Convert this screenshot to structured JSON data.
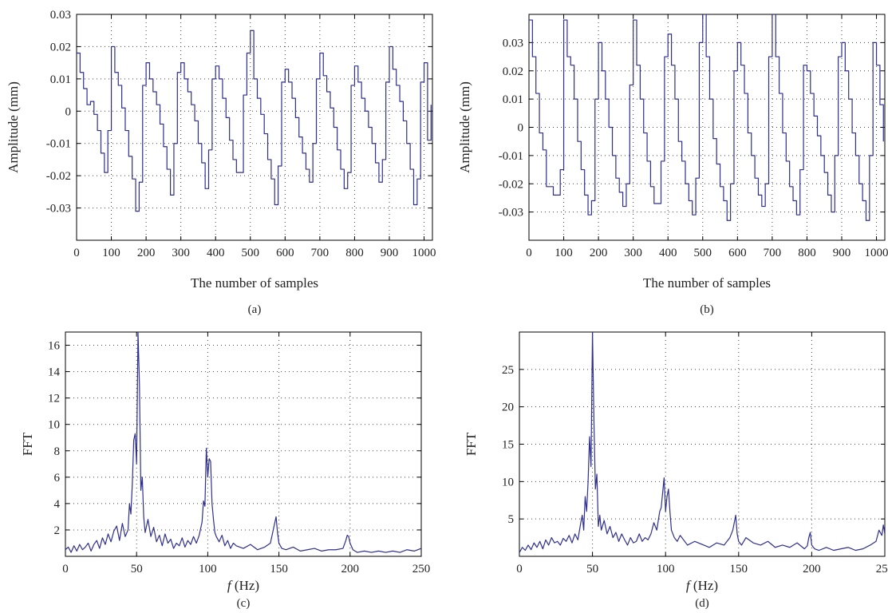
{
  "chart_data": [
    {
      "type": "line",
      "panel": "(a)",
      "xlabel": "The number of samples",
      "ylabel": "Amplitude (mm)",
      "xlim": [
        0,
        1024
      ],
      "ylim": [
        -0.04,
        0.03
      ],
      "xticks": [
        0,
        100,
        200,
        300,
        400,
        500,
        600,
        700,
        800,
        900,
        1000
      ],
      "yticks": [
        -0.03,
        -0.02,
        -0.01,
        0,
        0.01,
        0.02,
        0.03
      ],
      "yticklabels": [
        "-0.03",
        "-0.02",
        "-0.01",
        "0",
        "0.01",
        "0.02",
        "0.03"
      ],
      "grid": true,
      "x": [
        0,
        10,
        20,
        30,
        40,
        50,
        60,
        70,
        80,
        90,
        100,
        110,
        120,
        130,
        140,
        150,
        160,
        170,
        180,
        190,
        200,
        210,
        220,
        230,
        240,
        250,
        260,
        270,
        280,
        290,
        300,
        310,
        320,
        330,
        340,
        350,
        360,
        370,
        380,
        390,
        400,
        410,
        420,
        430,
        440,
        450,
        460,
        470,
        480,
        490,
        500,
        510,
        520,
        530,
        540,
        550,
        560,
        570,
        580,
        590,
        600,
        610,
        620,
        630,
        640,
        650,
        660,
        670,
        680,
        690,
        700,
        710,
        720,
        730,
        740,
        750,
        760,
        770,
        780,
        790,
        800,
        810,
        820,
        830,
        840,
        850,
        860,
        870,
        880,
        890,
        900,
        910,
        920,
        930,
        940,
        950,
        960,
        970,
        980,
        990,
        1000,
        1010,
        1020
      ],
      "y": [
        0.018,
        0.012,
        0.007,
        0.002,
        0.003,
        -0.001,
        -0.006,
        -0.013,
        -0.019,
        -0.006,
        0.02,
        0.012,
        0.008,
        0.001,
        -0.006,
        -0.014,
        -0.021,
        -0.031,
        -0.022,
        0.008,
        0.015,
        0.01,
        0.006,
        0.002,
        -0.004,
        -0.011,
        -0.018,
        -0.026,
        -0.01,
        0.012,
        0.015,
        0.01,
        0.006,
        0.002,
        -0.003,
        -0.01,
        -0.016,
        -0.024,
        -0.012,
        0.01,
        0.014,
        0.01,
        0.004,
        -0.002,
        -0.009,
        -0.015,
        -0.019,
        -0.019,
        0.005,
        0.018,
        0.025,
        0.01,
        0.004,
        -0.001,
        -0.007,
        -0.015,
        -0.021,
        -0.029,
        -0.017,
        0.009,
        0.013,
        0.009,
        0.004,
        -0.002,
        -0.008,
        -0.013,
        -0.018,
        -0.022,
        -0.01,
        0.01,
        0.018,
        0.011,
        0.006,
        0.001,
        -0.005,
        -0.012,
        -0.018,
        -0.024,
        -0.019,
        0.008,
        0.014,
        0.009,
        0.004,
        0.0,
        -0.005,
        -0.01,
        -0.016,
        -0.022,
        -0.015,
        0.009,
        0.02,
        0.013,
        0.008,
        0.003,
        -0.003,
        -0.01,
        -0.018,
        -0.029,
        -0.021,
        0.009,
        0.015,
        -0.009,
        0.002
      ]
    },
    {
      "type": "line",
      "panel": "(b)",
      "xlabel": "The number of samples",
      "ylabel": "Amplitude (mm)",
      "xlim": [
        0,
        1024
      ],
      "ylim": [
        -0.04,
        0.04
      ],
      "xticks": [
        0,
        100,
        200,
        300,
        400,
        500,
        600,
        700,
        800,
        900,
        1000
      ],
      "yticks": [
        -0.03,
        -0.02,
        -0.01,
        0,
        0.01,
        0.02,
        0.03
      ],
      "yticklabels": [
        "-0.03",
        "-0.02",
        "-0.01",
        "0",
        "0.01",
        "0.02",
        "0.03"
      ],
      "grid": true,
      "x": [
        0,
        10,
        20,
        30,
        40,
        50,
        60,
        70,
        80,
        90,
        100,
        110,
        120,
        130,
        140,
        150,
        160,
        170,
        180,
        190,
        200,
        210,
        220,
        230,
        240,
        250,
        260,
        270,
        280,
        290,
        300,
        310,
        320,
        330,
        340,
        350,
        360,
        370,
        380,
        390,
        400,
        410,
        420,
        430,
        440,
        450,
        460,
        470,
        480,
        490,
        500,
        510,
        520,
        530,
        540,
        550,
        560,
        570,
        580,
        590,
        600,
        610,
        620,
        630,
        640,
        650,
        660,
        670,
        680,
        690,
        700,
        710,
        720,
        730,
        740,
        750,
        760,
        770,
        780,
        790,
        800,
        810,
        820,
        830,
        840,
        850,
        860,
        870,
        880,
        890,
        900,
        910,
        920,
        930,
        940,
        950,
        960,
        970,
        980,
        990,
        1000,
        1010,
        1020
      ],
      "y": [
        0.038,
        0.025,
        0.012,
        -0.002,
        -0.008,
        -0.021,
        -0.021,
        -0.024,
        -0.024,
        -0.015,
        0.038,
        0.025,
        0.022,
        0.01,
        -0.005,
        -0.015,
        -0.024,
        -0.031,
        -0.026,
        0.01,
        0.03,
        0.02,
        0.01,
        0.0,
        -0.01,
        -0.018,
        -0.023,
        -0.028,
        -0.02,
        0.015,
        0.038,
        0.022,
        0.01,
        -0.002,
        -0.012,
        -0.021,
        -0.027,
        -0.027,
        -0.012,
        0.025,
        0.033,
        0.022,
        0.01,
        -0.005,
        -0.012,
        -0.02,
        -0.026,
        -0.031,
        -0.018,
        0.03,
        0.04,
        0.025,
        0.01,
        -0.004,
        -0.013,
        -0.021,
        -0.026,
        -0.033,
        -0.02,
        0.02,
        0.03,
        0.022,
        0.012,
        -0.002,
        -0.01,
        -0.018,
        -0.024,
        -0.028,
        -0.02,
        0.025,
        0.04,
        0.025,
        0.012,
        -0.002,
        -0.012,
        -0.021,
        -0.026,
        -0.031,
        -0.015,
        0.022,
        0.02,
        0.012,
        0.004,
        -0.003,
        -0.01,
        -0.016,
        -0.024,
        -0.03,
        -0.01,
        0.025,
        0.03,
        0.02,
        0.01,
        -0.002,
        -0.01,
        -0.02,
        -0.026,
        -0.033,
        -0.01,
        0.03,
        0.022,
        0.008,
        -0.005
      ]
    },
    {
      "type": "line",
      "panel": "(c)",
      "xlabel_italic": "f",
      "xlabel_unit": "(Hz)",
      "ylabel": "FFT",
      "xlim": [
        0,
        250
      ],
      "ylim": [
        0,
        17
      ],
      "xticks": [
        0,
        50,
        100,
        150,
        200,
        250
      ],
      "yticks": [
        2,
        4,
        6,
        8,
        10,
        12,
        14,
        16
      ],
      "yticklabels": [
        "2",
        "4",
        "6",
        "8",
        "10",
        "12",
        "14",
        "16"
      ],
      "grid": true,
      "x": [
        0,
        2,
        4,
        6,
        8,
        10,
        12,
        14,
        16,
        18,
        20,
        22,
        24,
        26,
        28,
        30,
        32,
        34,
        36,
        38,
        40,
        42,
        44,
        45,
        46,
        47,
        48,
        49,
        50,
        51,
        52,
        53,
        54,
        55,
        56,
        58,
        60,
        62,
        64,
        66,
        68,
        70,
        72,
        74,
        76,
        78,
        80,
        82,
        84,
        86,
        88,
        90,
        92,
        94,
        96,
        97,
        98,
        99,
        100,
        101,
        102,
        103,
        104,
        105,
        106,
        108,
        110,
        112,
        114,
        116,
        118,
        120,
        125,
        130,
        135,
        140,
        144,
        146,
        148,
        149,
        150,
        152,
        155,
        160,
        165,
        170,
        175,
        180,
        185,
        190,
        195,
        197,
        198,
        199,
        200,
        202,
        205,
        210,
        215,
        220,
        225,
        230,
        235,
        240,
        245,
        250
      ],
      "y": [
        0.5,
        0.7,
        0.3,
        0.8,
        0.4,
        0.9,
        0.5,
        0.7,
        1.0,
        0.4,
        0.9,
        1.2,
        0.6,
        1.4,
        0.9,
        1.7,
        1.1,
        1.9,
        2.3,
        1.2,
        2.5,
        1.5,
        2.0,
        4.0,
        3.2,
        5.5,
        8.8,
        9.3,
        7.0,
        17.0,
        13.0,
        5.0,
        6.0,
        3.0,
        1.8,
        2.8,
        1.5,
        2.2,
        1.1,
        1.6,
        0.8,
        1.7,
        1.0,
        1.3,
        0.6,
        1.0,
        0.8,
        1.4,
        0.7,
        1.2,
        0.9,
        1.5,
        1.0,
        1.6,
        2.6,
        4.2,
        3.8,
        8.2,
        6.0,
        7.4,
        7.2,
        4.0,
        2.8,
        1.8,
        1.5,
        1.1,
        1.6,
        0.8,
        1.2,
        0.6,
        1.0,
        0.8,
        0.6,
        0.9,
        0.5,
        0.7,
        1.0,
        2.0,
        3.0,
        1.8,
        1.0,
        0.6,
        0.5,
        0.7,
        0.4,
        0.5,
        0.6,
        0.4,
        0.5,
        0.5,
        0.6,
        1.2,
        1.6,
        1.5,
        1.0,
        0.5,
        0.3,
        0.4,
        0.3,
        0.4,
        0.3,
        0.4,
        0.3,
        0.5,
        0.4,
        0.6
      ]
    },
    {
      "type": "line",
      "panel": "(d)",
      "xlabel_italic": "f",
      "xlabel_unit": "(Hz)",
      "ylabel": "FFT",
      "xlim": [
        0,
        250
      ],
      "ylim": [
        0,
        30
      ],
      "xticks": [
        0,
        50,
        100,
        150,
        200,
        250
      ],
      "yticks": [
        5,
        10,
        15,
        20,
        25
      ],
      "yticklabels": [
        "5",
        "10",
        "15",
        "20",
        "25"
      ],
      "grid": true,
      "x": [
        0,
        2,
        4,
        6,
        8,
        10,
        12,
        14,
        16,
        18,
        20,
        22,
        24,
        26,
        28,
        30,
        32,
        34,
        36,
        38,
        40,
        42,
        43,
        44,
        45,
        46,
        47,
        48,
        49,
        50,
        51,
        52,
        53,
        54,
        55,
        56,
        58,
        60,
        62,
        64,
        66,
        68,
        70,
        72,
        74,
        76,
        78,
        80,
        82,
        84,
        86,
        88,
        90,
        92,
        94,
        96,
        97,
        98,
        99,
        100,
        101,
        102,
        103,
        104,
        106,
        108,
        110,
        115,
        120,
        125,
        130,
        135,
        140,
        144,
        146,
        148,
        149,
        150,
        152,
        155,
        160,
        165,
        170,
        175,
        180,
        185,
        190,
        195,
        197,
        198,
        199,
        200,
        202,
        205,
        210,
        215,
        220,
        225,
        230,
        235,
        240,
        244,
        246,
        248,
        249,
        250
      ],
      "y": [
        0.5,
        1.2,
        0.8,
        1.5,
        0.9,
        1.8,
        1.2,
        2.0,
        1.0,
        2.2,
        1.5,
        2.5,
        1.8,
        2.0,
        1.5,
        2.4,
        2.0,
        2.8,
        1.8,
        3.0,
        2.2,
        4.5,
        5.5,
        3.5,
        8.0,
        6.0,
        10.0,
        16.0,
        12.0,
        30.0,
        18.0,
        9.0,
        11.0,
        4.0,
        5.5,
        3.5,
        4.8,
        3.0,
        4.0,
        2.5,
        3.2,
        2.0,
        3.0,
        2.2,
        1.5,
        2.5,
        1.8,
        2.0,
        3.0,
        2.0,
        2.5,
        2.2,
        3.0,
        4.5,
        3.5,
        6.0,
        6.5,
        8.5,
        10.5,
        6.0,
        8.0,
        9.0,
        6.0,
        3.5,
        2.5,
        2.0,
        2.8,
        1.5,
        2.0,
        1.6,
        1.2,
        1.8,
        1.5,
        2.5,
        3.5,
        5.5,
        3.0,
        2.0,
        1.5,
        2.5,
        1.8,
        1.5,
        2.0,
        1.2,
        1.5,
        1.2,
        1.8,
        1.0,
        1.4,
        2.5,
        3.2,
        1.5,
        1.0,
        0.8,
        1.2,
        0.8,
        1.0,
        1.2,
        0.8,
        1.0,
        1.5,
        2.0,
        3.5,
        2.8,
        4.2,
        3.0
      ]
    }
  ]
}
